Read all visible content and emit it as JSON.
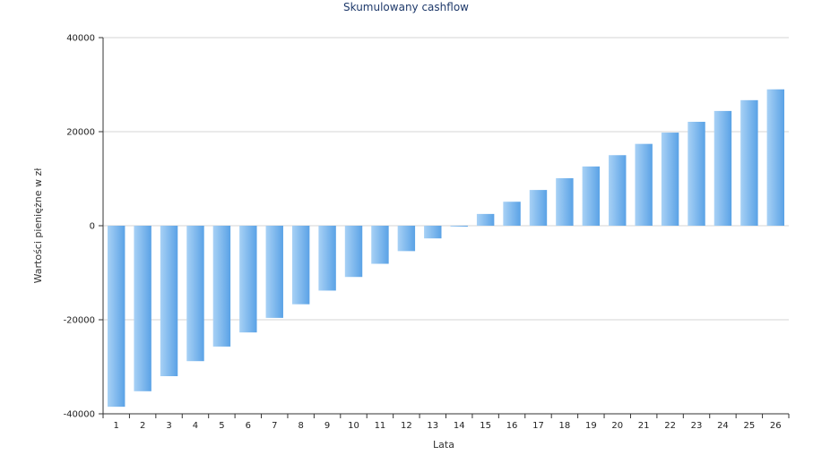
{
  "chart_data": {
    "type": "bar",
    "title": "Skumulowany cashflow",
    "xlabel": "Lata",
    "ylabel": "Wartości pieniężne w zł",
    "categories": [
      "1",
      "2",
      "3",
      "4",
      "5",
      "6",
      "7",
      "8",
      "9",
      "10",
      "11",
      "12",
      "13",
      "14",
      "15",
      "16",
      "17",
      "18",
      "19",
      "20",
      "21",
      "22",
      "23",
      "24",
      "25",
      "26"
    ],
    "values": [
      -38500,
      -35200,
      -32000,
      -28800,
      -25700,
      -22700,
      -19600,
      -16700,
      -13800,
      -10900,
      -8100,
      -5400,
      -2700,
      -200,
      2500,
      5100,
      7600,
      10100,
      12600,
      15000,
      17400,
      19800,
      22100,
      24400,
      26700,
      29000
    ],
    "ylim": [
      -40000,
      40000
    ],
    "yticks": [
      40000,
      20000,
      0,
      -20000,
      -40000
    ],
    "grid": true,
    "legend": "none",
    "colors": {
      "bar_light": "#a8d1f5",
      "bar_dark": "#5aa2e6",
      "title": "#1f3a6b"
    }
  }
}
